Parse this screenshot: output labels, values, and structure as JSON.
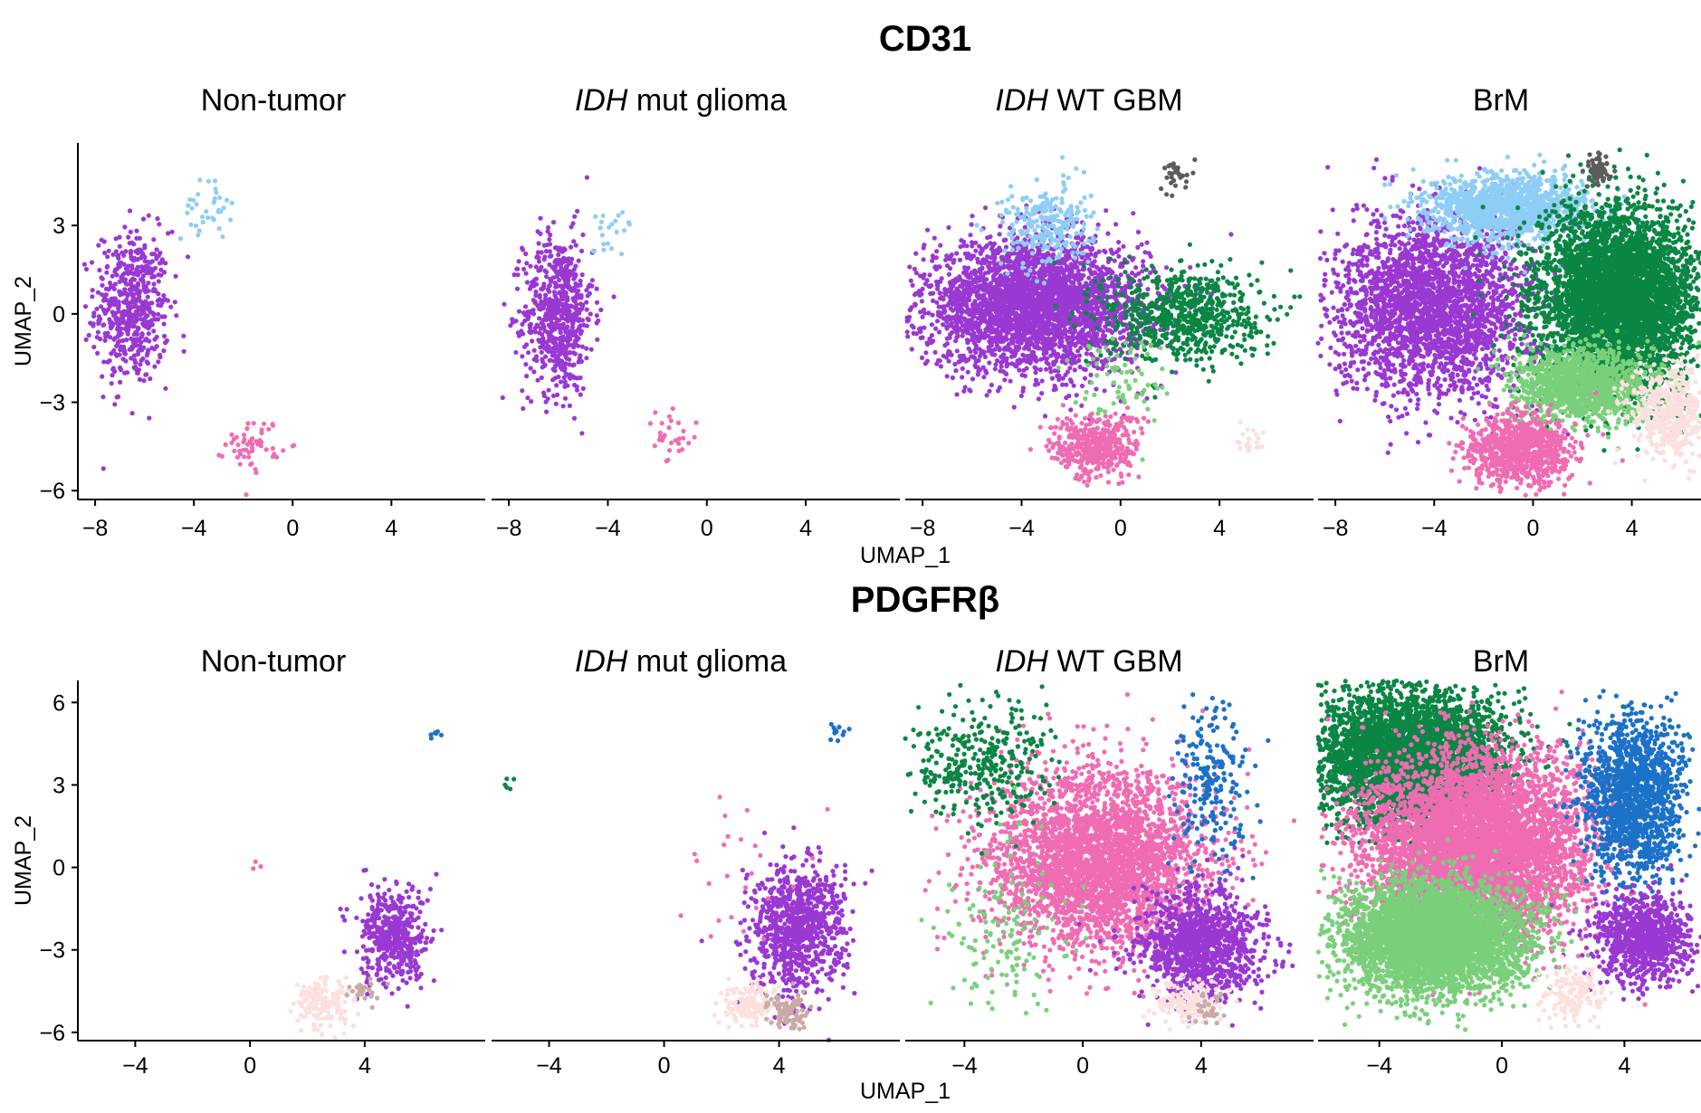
{
  "chart_data": [
    {
      "type": "scatter",
      "title": "CD31",
      "xlabel": "UMAP_1",
      "ylabel": "UMAP_2",
      "ylim": [
        -6.3,
        5.8
      ],
      "yticks": [
        -6,
        -3,
        0,
        3
      ],
      "ytick_labels": [
        "−6",
        "−3",
        "0",
        "3"
      ],
      "facets": [
        {
          "title_italic": "",
          "title_rest": "Non-tumor",
          "xlim": [
            -8.7,
            7.8
          ],
          "xticks": [
            -8,
            -4,
            0,
            4
          ],
          "xtick_labels": [
            "−8",
            "−4",
            "0",
            "4"
          ],
          "clusters": [
            {
              "color": "#9a38d2",
              "cx": -6.5,
              "cy": 0.2,
              "sx": 0.75,
              "sy": 1.3,
              "n": 550
            },
            {
              "color": "#8ecdf5",
              "cx": -3.5,
              "cy": 3.5,
              "sx": 0.5,
              "sy": 0.5,
              "n": 35
            },
            {
              "color": "#f06cb2",
              "cx": -1.6,
              "cy": -4.4,
              "sx": 0.55,
              "sy": 0.45,
              "n": 55
            }
          ]
        },
        {
          "title_italic": "IDH",
          "title_rest": " mut glioma",
          "xlim": [
            -8.7,
            7.8
          ],
          "xticks": [
            -8,
            -4,
            0,
            4
          ],
          "xtick_labels": [
            "−8",
            "−4",
            "0",
            "4"
          ],
          "clusters": [
            {
              "color": "#9a38d2",
              "cx": -6.0,
              "cy": 0.0,
              "sx": 0.7,
              "sy": 1.35,
              "n": 650
            },
            {
              "color": "#8ecdf5",
              "cx": -3.8,
              "cy": 3.1,
              "sx": 0.45,
              "sy": 0.4,
              "n": 20
            },
            {
              "color": "#f06cb2",
              "cx": -1.5,
              "cy": -4.3,
              "sx": 0.55,
              "sy": 0.45,
              "n": 30
            }
          ]
        },
        {
          "title_italic": "IDH",
          "title_rest": " WT GBM",
          "xlim": [
            -8.7,
            7.8
          ],
          "xticks": [
            -8,
            -4,
            0,
            4
          ],
          "xtick_labels": [
            "−8",
            "−4",
            "0",
            "4"
          ],
          "clusters": [
            {
              "color": "#9a38d2",
              "cx": -3.5,
              "cy": 0.3,
              "sx": 2.2,
              "sy": 1.1,
              "n": 3200
            },
            {
              "color": "#8ecdf5",
              "cx": -3.0,
              "cy": 3.0,
              "sx": 0.9,
              "sy": 0.7,
              "n": 250
            },
            {
              "color": "#0b8644",
              "cx": 2.5,
              "cy": 0.0,
              "sx": 1.6,
              "sy": 0.8,
              "n": 700
            },
            {
              "color": "#7ad07a",
              "cx": 0.0,
              "cy": -2.2,
              "sx": 0.9,
              "sy": 0.8,
              "n": 80
            },
            {
              "color": "#f06cb2",
              "cx": -1.0,
              "cy": -4.5,
              "sx": 0.9,
              "sy": 0.55,
              "n": 420
            },
            {
              "color": "#5c5c5c",
              "cx": 2.3,
              "cy": 4.7,
              "sx": 0.3,
              "sy": 0.25,
              "n": 30
            },
            {
              "color": "#fbe0de",
              "cx": 5.2,
              "cy": -4.2,
              "sx": 0.35,
              "sy": 0.3,
              "n": 20
            }
          ]
        },
        {
          "title_italic": "",
          "title_rest": "BrM",
          "xlim": [
            -8.7,
            6.8
          ],
          "xticks": [
            -8,
            -4,
            0,
            4
          ],
          "xtick_labels": [
            "−8",
            "−4",
            "0",
            "4"
          ],
          "clusters": [
            {
              "color": "#9a38d2",
              "cx": -4.0,
              "cy": 0.2,
              "sx": 2.0,
              "sy": 1.5,
              "n": 2600
            },
            {
              "color": "#8ecdf5",
              "cx": -1.0,
              "cy": 3.6,
              "sx": 1.6,
              "sy": 0.55,
              "n": 1400
            },
            {
              "color": "#0b8644",
              "cx": 3.5,
              "cy": 0.5,
              "sx": 1.6,
              "sy": 1.5,
              "n": 4500
            },
            {
              "color": "#7ad07a",
              "cx": 2.0,
              "cy": -2.4,
              "sx": 1.4,
              "sy": 0.6,
              "n": 1200
            },
            {
              "color": "#f06cb2",
              "cx": -0.6,
              "cy": -4.6,
              "sx": 1.0,
              "sy": 0.6,
              "n": 900
            },
            {
              "color": "#fbe0de",
              "cx": 5.5,
              "cy": -3.3,
              "sx": 0.8,
              "sy": 0.8,
              "n": 500
            },
            {
              "color": "#5c5c5c",
              "cx": 2.6,
              "cy": 4.8,
              "sx": 0.25,
              "sy": 0.3,
              "n": 60
            }
          ]
        }
      ]
    },
    {
      "type": "scatter",
      "title": "PDGFRβ",
      "xlabel": "UMAP_1",
      "ylabel": "UMAP_2",
      "ylim": [
        -6.3,
        6.8
      ],
      "yticks": [
        -6,
        -3,
        0,
        3,
        6
      ],
      "ytick_labels": [
        "−6",
        "−3",
        "0",
        "3",
        "6"
      ],
      "facets": [
        {
          "title_italic": "",
          "title_rest": "Non-tumor",
          "xlim": [
            -6.0,
            8.2
          ],
          "xticks": [
            -4,
            0,
            4
          ],
          "xtick_labels": [
            "−4",
            "0",
            "4"
          ],
          "clusters": [
            {
              "color": "#9a38d2",
              "cx": 5.0,
              "cy": -2.5,
              "sx": 0.6,
              "sy": 0.9,
              "n": 450
            },
            {
              "color": "#fbe0de",
              "cx": 2.6,
              "cy": -5.0,
              "sx": 0.5,
              "sy": 0.5,
              "n": 160
            },
            {
              "color": "#c9aaa7",
              "cx": 4.0,
              "cy": -4.6,
              "sx": 0.3,
              "sy": 0.3,
              "n": 25
            },
            {
              "color": "#1c71c8",
              "cx": 6.5,
              "cy": 4.8,
              "sx": 0.2,
              "sy": 0.12,
              "n": 6
            },
            {
              "color": "#f06cb2",
              "cx": 0.2,
              "cy": 0.0,
              "sx": 0.4,
              "sy": 0.1,
              "n": 3
            }
          ]
        },
        {
          "title_italic": "IDH",
          "title_rest": " mut glioma",
          "xlim": [
            -6.0,
            8.2
          ],
          "xticks": [
            -4,
            0,
            4
          ],
          "xtick_labels": [
            "−4",
            "0",
            "4"
          ],
          "clusters": [
            {
              "color": "#9a38d2",
              "cx": 4.6,
              "cy": -2.3,
              "sx": 0.8,
              "sy": 1.2,
              "n": 900
            },
            {
              "color": "#fbe0de",
              "cx": 3.0,
              "cy": -5.0,
              "sx": 0.5,
              "sy": 0.4,
              "n": 150
            },
            {
              "color": "#c9aaa7",
              "cx": 4.3,
              "cy": -5.2,
              "sx": 0.35,
              "sy": 0.3,
              "n": 90
            },
            {
              "color": "#1c71c8",
              "cx": 6.0,
              "cy": 4.9,
              "sx": 0.2,
              "sy": 0.2,
              "n": 12
            },
            {
              "color": "#0b8644",
              "cx": -5.2,
              "cy": 2.9,
              "sx": 0.3,
              "sy": 0.3,
              "n": 5
            },
            {
              "color": "#f06cb2",
              "cx": 2.5,
              "cy": -0.5,
              "sx": 1.2,
              "sy": 1.4,
              "n": 25
            }
          ]
        },
        {
          "title_italic": "IDH",
          "title_rest": " WT GBM",
          "xlim": [
            -6.0,
            7.8
          ],
          "xticks": [
            -4,
            0,
            4
          ],
          "xtick_labels": [
            "−4",
            "0",
            "4"
          ],
          "clusters": [
            {
              "color": "#f06cb2",
              "cx": 0.5,
              "cy": 0.3,
              "sx": 1.8,
              "sy": 1.6,
              "n": 3300
            },
            {
              "color": "#0b8644",
              "cx": -3.5,
              "cy": 3.8,
              "sx": 1.3,
              "sy": 1.1,
              "n": 350
            },
            {
              "color": "#1c71c8",
              "cx": 4.3,
              "cy": 3.0,
              "sx": 0.6,
              "sy": 1.4,
              "n": 220
            },
            {
              "color": "#9a38d2",
              "cx": 4.0,
              "cy": -2.8,
              "sx": 1.0,
              "sy": 1.0,
              "n": 1100
            },
            {
              "color": "#7ad07a",
              "cx": -2.5,
              "cy": -2.5,
              "sx": 1.0,
              "sy": 1.5,
              "n": 140
            },
            {
              "color": "#fbe0de",
              "cx": 3.5,
              "cy": -5.0,
              "sx": 0.5,
              "sy": 0.4,
              "n": 160
            },
            {
              "color": "#c9aaa7",
              "cx": 4.3,
              "cy": -5.2,
              "sx": 0.3,
              "sy": 0.3,
              "n": 30
            }
          ]
        },
        {
          "title_italic": "",
          "title_rest": "BrM",
          "xlim": [
            -6.0,
            6.5
          ],
          "xticks": [
            -4,
            0,
            4
          ],
          "xtick_labels": [
            "−4",
            "0",
            "4"
          ],
          "clusters": [
            {
              "color": "#0b8644",
              "cx": -3.0,
              "cy": 4.0,
              "sx": 1.6,
              "sy": 1.2,
              "n": 4000
            },
            {
              "color": "#f06cb2",
              "cx": -0.8,
              "cy": 0.8,
              "sx": 1.8,
              "sy": 1.6,
              "n": 5500
            },
            {
              "color": "#7ad07a",
              "cx": -2.2,
              "cy": -2.6,
              "sx": 1.5,
              "sy": 1.0,
              "n": 4200
            },
            {
              "color": "#1c71c8",
              "cx": 4.3,
              "cy": 2.5,
              "sx": 0.8,
              "sy": 1.5,
              "n": 1400
            },
            {
              "color": "#9a38d2",
              "cx": 4.6,
              "cy": -2.6,
              "sx": 0.8,
              "sy": 0.8,
              "n": 900
            },
            {
              "color": "#fbe0de",
              "cx": 2.3,
              "cy": -4.6,
              "sx": 0.5,
              "sy": 0.5,
              "n": 150
            }
          ]
        }
      ]
    }
  ]
}
